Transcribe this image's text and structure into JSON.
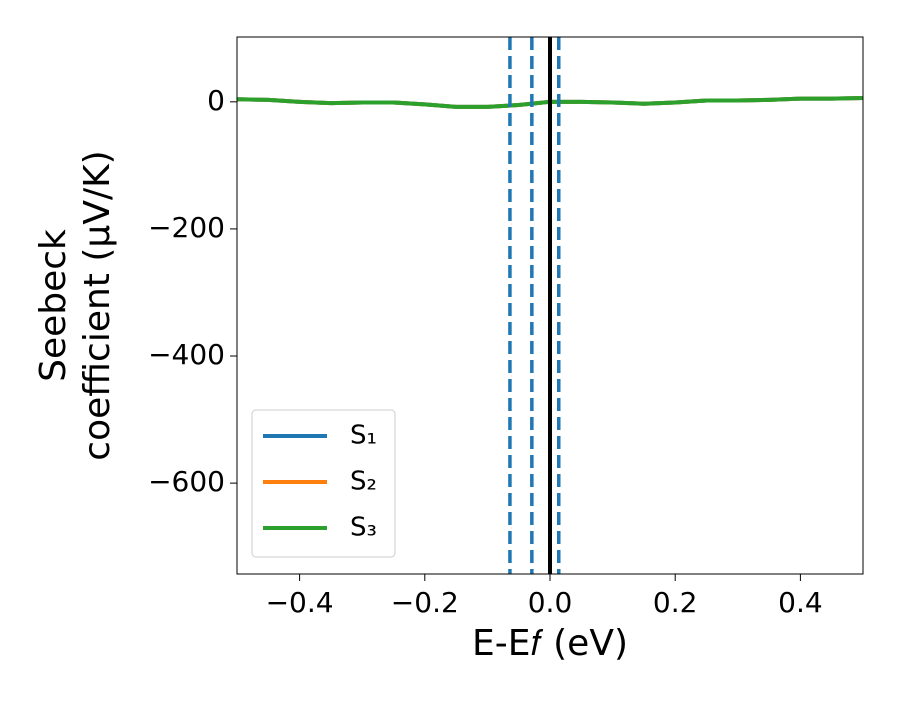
{
  "chart_data": {
    "type": "line",
    "xlabel": "E-E𝑓 (eV)",
    "ylabel": [
      "Seebeck",
      "coefficient  (μV/K)"
    ],
    "x": [
      -0.5,
      -0.45,
      -0.4,
      -0.35,
      -0.3,
      -0.25,
      -0.2,
      -0.15,
      -0.1,
      -0.05,
      0,
      0.05,
      0.1,
      0.15,
      0.2,
      0.25,
      0.3,
      0.35,
      0.4,
      0.45,
      0.5
    ],
    "series": [
      {
        "name": "S₁",
        "color": "#1f77b4",
        "values": [
          4,
          3,
          0,
          -2,
          -1,
          -1,
          -4,
          -8,
          -8,
          -5,
          0,
          0,
          -1,
          -3,
          -1,
          2,
          2,
          3,
          5,
          5,
          6
        ]
      },
      {
        "name": "S₂",
        "color": "#ff7f0e",
        "values": [
          4,
          3,
          0,
          -2,
          -1,
          -1,
          -4,
          -8,
          -8,
          -5,
          0,
          0,
          -1,
          -3,
          -1,
          2,
          2,
          3,
          5,
          5,
          6
        ]
      },
      {
        "name": "S₃",
        "color": "#2ca02c",
        "values": [
          4,
          3,
          0,
          -2,
          -1,
          -1,
          -4,
          -8,
          -8,
          -5,
          0,
          0,
          -1,
          -3,
          -1,
          2,
          2,
          3,
          5,
          5,
          6
        ]
      }
    ],
    "vlines": [
      {
        "x": -0.064,
        "color": "#1f77b4",
        "dashed": true
      },
      {
        "x": -0.029,
        "color": "#1f77b4",
        "dashed": true
      },
      {
        "x": 0.014,
        "color": "#1f77b4",
        "dashed": true
      },
      {
        "x": 0,
        "color": "#000000",
        "dashed": false
      }
    ],
    "xlim": [
      -0.5,
      0.5
    ],
    "xticks": [
      {
        "value": -0.4,
        "label": "−0.4"
      },
      {
        "value": -0.2,
        "label": "−0.2"
      },
      {
        "value": 0,
        "label": "0.0"
      },
      0.2,
      0.4
    ],
    "ylim": [
      -743,
      102
    ],
    "yticks": [
      0,
      {
        "value": -200,
        "label": "−200"
      },
      {
        "value": -400,
        "label": "−400"
      },
      {
        "value": -600,
        "label": "−600"
      }
    ],
    "legend": "lower left"
  }
}
